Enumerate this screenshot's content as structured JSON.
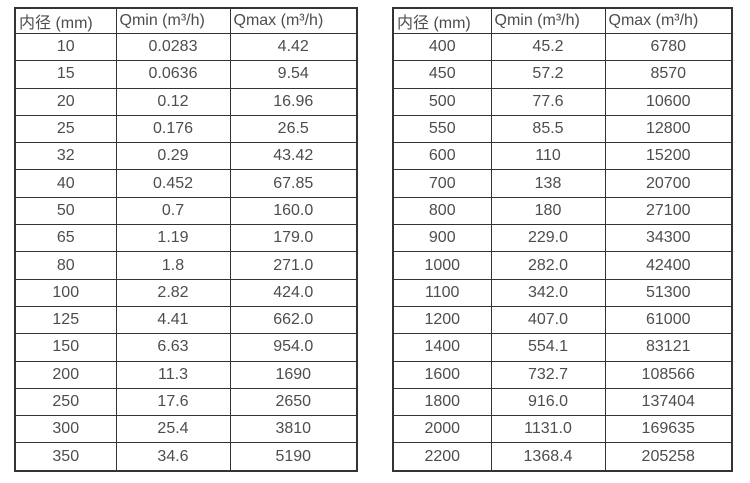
{
  "colors": {
    "border": "#333333",
    "text": "#4d4d4d",
    "background": "#ffffff"
  },
  "chart_data": [
    {
      "type": "table",
      "name": "flow-spec-table-small-diameters",
      "columns": [
        "内径 (mm)",
        "Qmin (m³/h)",
        "Qmax (m³/h)"
      ],
      "rows": [
        [
          "10",
          "0.0283",
          "4.42"
        ],
        [
          "15",
          "0.0636",
          "9.54"
        ],
        [
          "20",
          "0.12",
          "16.96"
        ],
        [
          "25",
          "0.176",
          "26.5"
        ],
        [
          "32",
          "0.29",
          "43.42"
        ],
        [
          "40",
          "0.452",
          "67.85"
        ],
        [
          "50",
          "0.7",
          "160.0"
        ],
        [
          "65",
          "1.19",
          "179.0"
        ],
        [
          "80",
          "1.8",
          "271.0"
        ],
        [
          "100",
          "2.82",
          "424.0"
        ],
        [
          "125",
          "4.41",
          "662.0"
        ],
        [
          "150",
          "6.63",
          "954.0"
        ],
        [
          "200",
          "11.3",
          "1690"
        ],
        [
          "250",
          "17.6",
          "2650"
        ],
        [
          "300",
          "25.4",
          "3810"
        ],
        [
          "350",
          "34.6",
          "5190"
        ]
      ]
    },
    {
      "type": "table",
      "name": "flow-spec-table-large-diameters",
      "columns": [
        "内径 (mm)",
        "Qmin (m³/h)",
        "Qmax (m³/h)"
      ],
      "rows": [
        [
          "400",
          "45.2",
          "6780"
        ],
        [
          "450",
          "57.2",
          "8570"
        ],
        [
          "500",
          "77.6",
          "10600"
        ],
        [
          "550",
          "85.5",
          "12800"
        ],
        [
          "600",
          "110",
          "15200"
        ],
        [
          "700",
          "138",
          "20700"
        ],
        [
          "800",
          "180",
          "27100"
        ],
        [
          "900",
          "229.0",
          "34300"
        ],
        [
          "1000",
          "282.0",
          "42400"
        ],
        [
          "1100",
          "342.0",
          "51300"
        ],
        [
          "1200",
          "407.0",
          "61000"
        ],
        [
          "1400",
          "554.1",
          "83121"
        ],
        [
          "1600",
          "732.7",
          "108566"
        ],
        [
          "1800",
          "916.0",
          "137404"
        ],
        [
          "2000",
          "1131.0",
          "169635"
        ],
        [
          "2200",
          "1368.4",
          "205258"
        ]
      ]
    }
  ]
}
